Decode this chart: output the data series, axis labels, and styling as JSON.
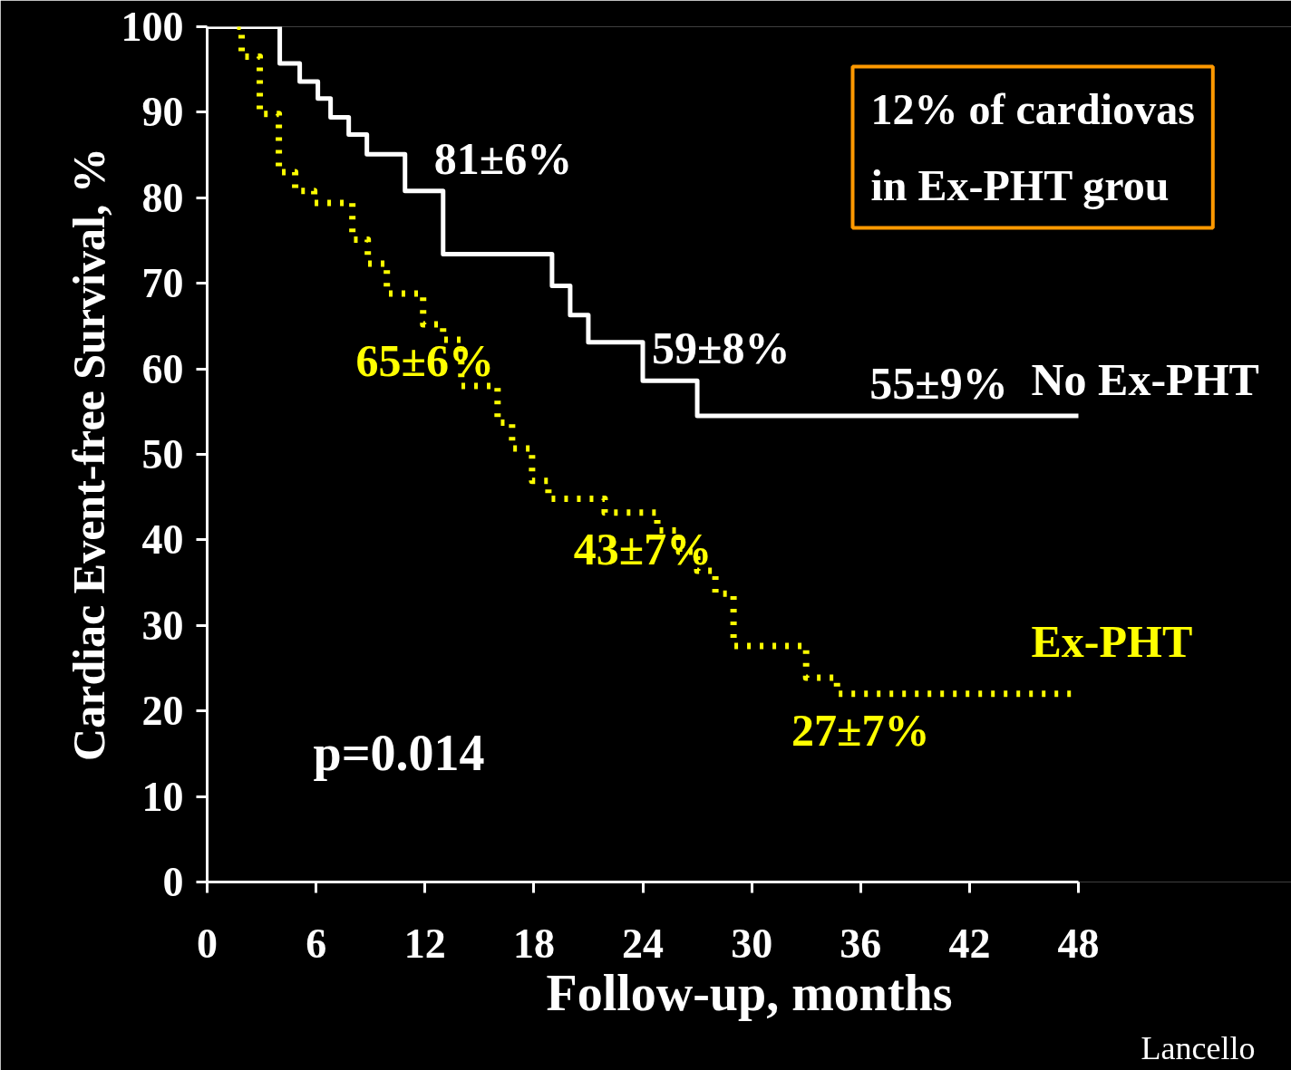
{
  "chart_data": {
    "type": "step",
    "xlabel": "Follow-up, months",
    "ylabel": "Cardiac Event-free Survival, %",
    "xlim": [
      0,
      48
    ],
    "xticks": [
      0,
      6,
      12,
      18,
      24,
      30,
      36,
      42,
      48
    ],
    "ylim": [
      0,
      100
    ],
    "yticks": [
      0,
      10,
      20,
      30,
      40,
      50,
      60,
      70,
      80,
      90,
      100
    ],
    "grid": false,
    "marker": "none",
    "series": [
      {
        "name": "No Ex-PHT",
        "color": "#ffffff",
        "line_style": "solid",
        "x": [
          0,
          4,
          5.1,
          6.1,
          6.8,
          7.8,
          8.8,
          10.9,
          13,
          19,
          20,
          21,
          24,
          27,
          48
        ],
        "values": [
          100,
          95.7,
          93.6,
          91.6,
          89.4,
          87.4,
          85.1,
          80.8,
          73.4,
          69.7,
          66.3,
          63.1,
          58.6,
          54.5,
          54.5
        ]
      },
      {
        "name": "Ex-PHT",
        "color": "#ffff00",
        "line_style": "dotted",
        "x": [
          1.65,
          1.9,
          2.9,
          3.95,
          3.95,
          4.85,
          5.9,
          8.0,
          8.85,
          9.9,
          11.9,
          13.0,
          14.0,
          16.0,
          16.8,
          17.9,
          18.8,
          21.9,
          24.8,
          26.0,
          27.0,
          28.0,
          29.0,
          33.0,
          34.7,
          48
        ],
        "values": [
          100,
          96.5,
          89.8,
          88.4,
          83.0,
          80.8,
          79.4,
          75.1,
          72.3,
          68.8,
          65.2,
          63.4,
          58.0,
          53.7,
          50.7,
          46.9,
          44.8,
          43.2,
          41.1,
          38.6,
          36.4,
          33.7,
          27.6,
          23.9,
          22.0,
          22.0
        ]
      }
    ],
    "annotations": [
      {
        "text": "81±6%",
        "x": 12,
        "y": 80.8
      },
      {
        "text": "59±8%",
        "x": 24,
        "y": 58.6
      },
      {
        "text": "55±9%",
        "x": 36,
        "y": 54.5
      },
      {
        "text": "65±6%",
        "x": 12,
        "y": 65.2
      },
      {
        "text": "43±7%",
        "x": 24,
        "y": 43.2
      },
      {
        "text": "27±7%",
        "x": 36,
        "y": 22.0
      },
      "p=0.014",
      "12% of cardiovas\nin Ex-PHT grou",
      "Lancello"
    ]
  }
}
